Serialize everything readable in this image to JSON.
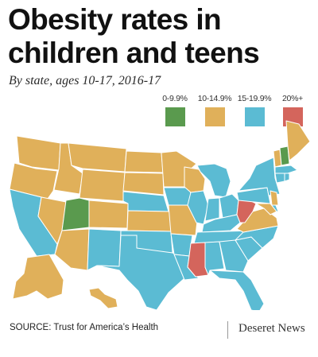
{
  "title_line1": "Obesity rates in",
  "title_line2": "children and teens",
  "subtitle": "By state, ages 10-17, 2016-17",
  "legend": [
    {
      "label": "0-9.9%",
      "color": "#5a9a4e"
    },
    {
      "label": "10-14.9%",
      "color": "#e0b05a"
    },
    {
      "label": "15-19.9%",
      "color": "#5bbbd3"
    },
    {
      "label": "20%+",
      "color": "#d4655c"
    }
  ],
  "colors": {
    "low": "#5a9a4e",
    "mid": "#e0b05a",
    "high": "#5bbbd3",
    "top": "#d4655c"
  },
  "states": {
    "WA": "10-14.9%",
    "OR": "10-14.9%",
    "CA": "15-19.9%",
    "NV": "10-14.9%",
    "ID": "10-14.9%",
    "MT": "10-14.9%",
    "WY": "10-14.9%",
    "UT": "0-9.9%",
    "AZ": "10-14.9%",
    "NM": "15-19.9%",
    "CO": "10-14.9%",
    "ND": "10-14.9%",
    "SD": "10-14.9%",
    "NE": "15-19.9%",
    "KS": "10-14.9%",
    "OK": "15-19.9%",
    "TX": "15-19.9%",
    "MN": "10-14.9%",
    "IA": "15-19.9%",
    "MO": "10-14.9%",
    "AR": "15-19.9%",
    "LA": "15-19.9%",
    "WI": "10-14.9%",
    "IL": "15-19.9%",
    "MI": "15-19.9%",
    "IN": "15-19.9%",
    "OH": "15-19.9%",
    "KY": "15-19.9%",
    "TN": "15-19.9%",
    "MS": "20%+",
    "AL": "15-19.9%",
    "GA": "15-19.9%",
    "FL": "15-19.9%",
    "SC": "15-19.9%",
    "NC": "15-19.9%",
    "VA": "10-14.9%",
    "WV": "20%+",
    "PA": "15-19.9%",
    "NY": "15-19.9%",
    "VT": "10-14.9%",
    "NH": "0-9.9%",
    "ME": "10-14.9%",
    "MA": "15-19.9%",
    "CT": "15-19.9%",
    "RI": "15-19.9%",
    "NJ": "10-14.9%",
    "DE": "15-19.9%",
    "MD": "10-14.9%",
    "AK": "10-14.9%",
    "HI": "10-14.9%"
  },
  "source": "SOURCE: Trust for America’s Health",
  "publisher": "Deseret News"
}
